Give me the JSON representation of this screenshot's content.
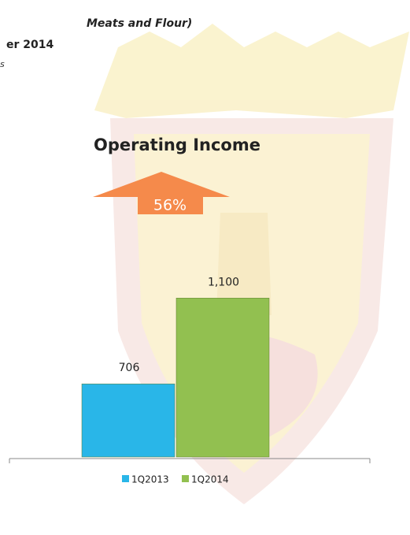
{
  "header": {
    "subtitle": "Meats and Flour)",
    "period": "er 2014",
    "unit": "s"
  },
  "chart_data": {
    "type": "bar",
    "title": "Operating Income",
    "annotation": "56%",
    "series": [
      {
        "name": "1Q2013",
        "color": "#29b6e8",
        "values": [
          706
        ],
        "value_labels": [
          "706"
        ]
      },
      {
        "name": "1Q2014",
        "color": "#92c050",
        "values": [
          1100
        ],
        "value_labels": [
          "1,100"
        ]
      }
    ],
    "ylim": [
      370,
      1170
    ]
  }
}
